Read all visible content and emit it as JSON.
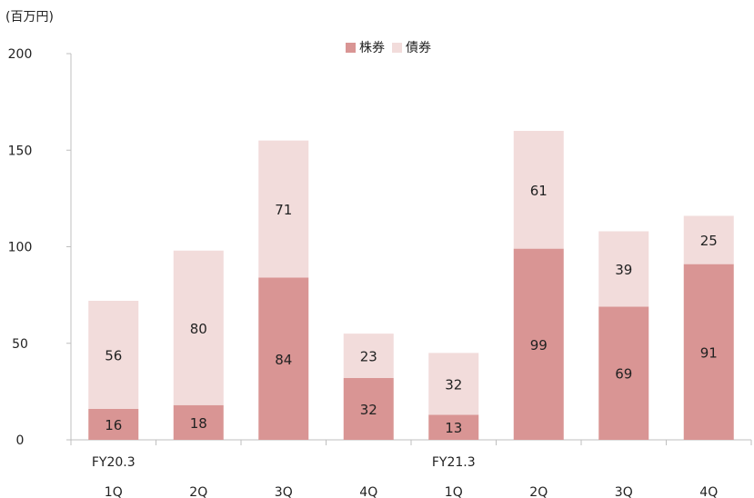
{
  "chart_data": {
    "type": "bar",
    "stacked": true,
    "unit_label": "(百万円)",
    "categories": [
      "1Q",
      "2Q",
      "3Q",
      "4Q",
      "1Q",
      "2Q",
      "3Q",
      "4Q"
    ],
    "fiscal_year_labels": [
      {
        "label": "FY20.3",
        "category_index": 0
      },
      {
        "label": "FY21.3",
        "category_index": 4
      }
    ],
    "series": [
      {
        "name": "株券",
        "color": "#d99594",
        "values": [
          16,
          18,
          84,
          32,
          13,
          99,
          69,
          91
        ]
      },
      {
        "name": "債券",
        "color": "#f2dcdb",
        "values": [
          56,
          80,
          71,
          23,
          32,
          61,
          39,
          25
        ]
      }
    ],
    "y_ticks": [
      0,
      50,
      100,
      150,
      200
    ],
    "ylim": [
      0,
      200
    ],
    "legend_position": "top-center",
    "grid": false
  }
}
